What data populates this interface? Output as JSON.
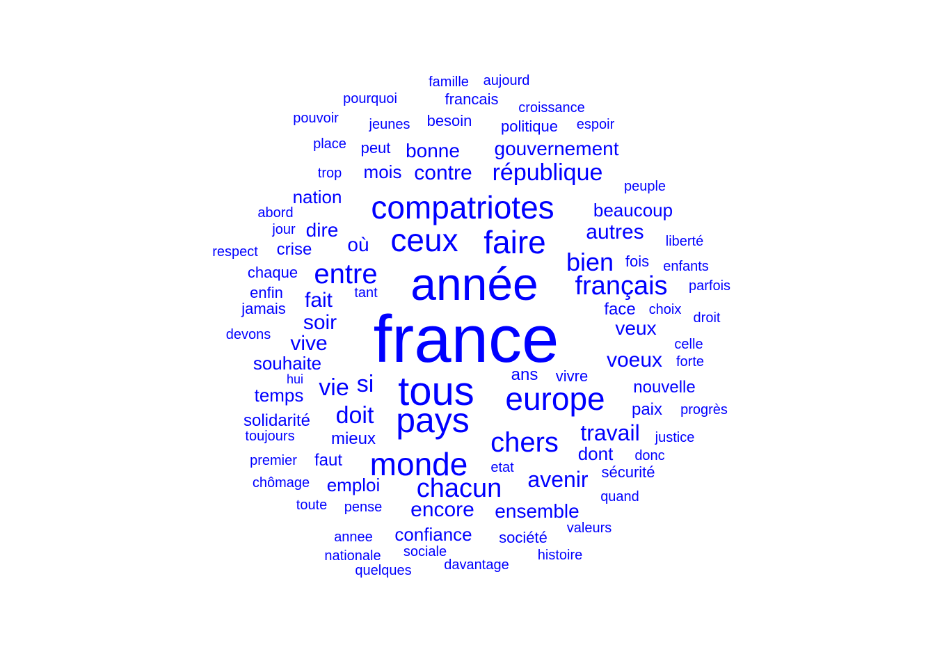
{
  "color": "#0000ff",
  "words": [
    "france",
    "année",
    "tous",
    "pays",
    "compatriotes",
    "ceux",
    "faire",
    "europe",
    "monde",
    "entre",
    "chers",
    "français",
    "bien",
    "chacun",
    "si",
    "vie",
    "doit",
    "république",
    "travail",
    "avenir",
    "autres",
    "voeux",
    "soir",
    "fait",
    "gouvernement",
    "encore",
    "contre",
    "ensemble",
    "veux",
    "mois",
    "bonne",
    "beaucoup",
    "dire",
    "où",
    "confiance",
    "emploi",
    "nation",
    "souhaite",
    "vive",
    "temps",
    "solidarité",
    "mieux",
    "nouvelle",
    "dont",
    "paix",
    "ans",
    "faut",
    "société",
    "crise",
    "chaque",
    "enfin",
    "jamais",
    "face",
    "fois",
    "sécurité",
    "politique",
    "besoin",
    "jeunes",
    "peut",
    "francais",
    "famille",
    "aujourd",
    "croissance",
    "espoir",
    "pourquoi",
    "pouvoir",
    "place",
    "trop",
    "peuple",
    "abord",
    "jour",
    "respect",
    "liberté",
    "enfants",
    "parfois",
    "tant",
    "choix",
    "droit",
    "devons",
    "celle",
    "forte",
    "hui",
    "vivre",
    "progrès",
    "toujours",
    "justice",
    "premier",
    "etat",
    "donc",
    "chômage",
    "quand",
    "toute",
    "pense",
    "valeurs",
    "annee",
    "histoire",
    "nationale",
    "sociale",
    "quelques",
    "davantage"
  ]
}
